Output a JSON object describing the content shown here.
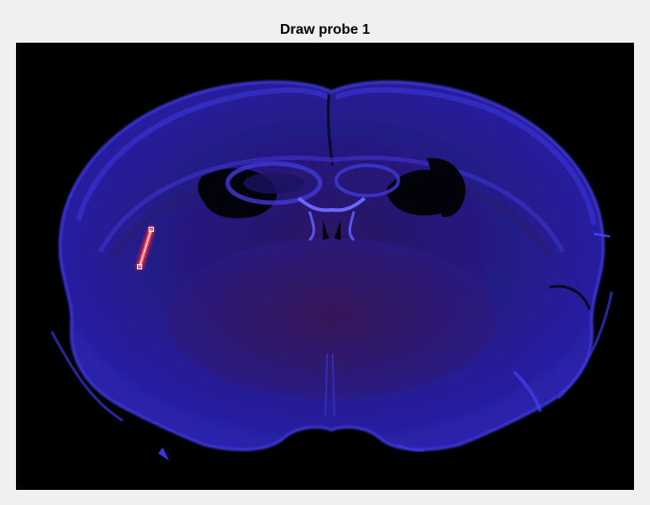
{
  "figure": {
    "title": "Draw probe 1"
  },
  "image": {
    "content": "fluorescence-brain-section",
    "background_color": "#000000",
    "tissue_color": "#2a1f9a",
    "highlight_color": "#5a55ff",
    "probe_color": "#ff2a3a",
    "handle_color": "#ffffff"
  },
  "probe": {
    "id": 1
  }
}
